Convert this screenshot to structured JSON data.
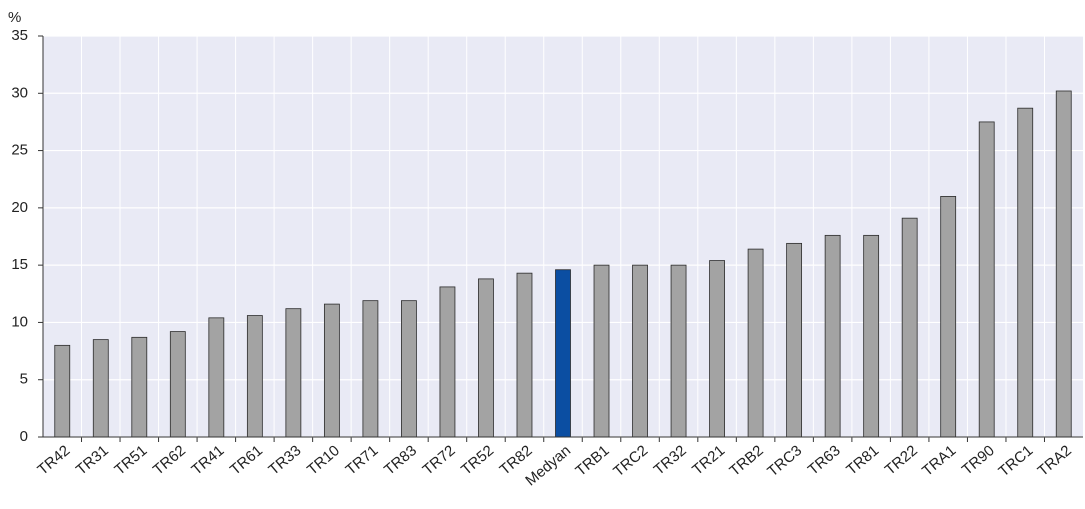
{
  "chart_data": {
    "type": "bar",
    "y_unit_label": "%",
    "categories": [
      "TR42",
      "TR31",
      "TR51",
      "TR62",
      "TR41",
      "TR61",
      "TR33",
      "TR10",
      "TR71",
      "TR83",
      "TR72",
      "TR52",
      "TR82",
      "Medyan",
      "TRB1",
      "TRC2",
      "TR32",
      "TR21",
      "TRB2",
      "TRC3",
      "TR63",
      "TR81",
      "TR22",
      "TRA1",
      "TR90",
      "TRC1",
      "TRA2"
    ],
    "values": [
      8.0,
      8.5,
      8.7,
      9.2,
      10.4,
      10.6,
      11.2,
      11.6,
      11.9,
      11.9,
      13.1,
      13.8,
      14.3,
      14.6,
      15.0,
      15.0,
      15.0,
      15.4,
      16.4,
      16.9,
      17.6,
      17.6,
      19.1,
      21.0,
      27.5,
      28.7,
      30.2
    ],
    "colors": [
      "#a3a3a3",
      "#a3a3a3",
      "#a3a3a3",
      "#a3a3a3",
      "#a3a3a3",
      "#a3a3a3",
      "#a3a3a3",
      "#a3a3a3",
      "#a3a3a3",
      "#a3a3a3",
      "#a3a3a3",
      "#a3a3a3",
      "#a3a3a3",
      "#0b4ea2",
      "#a3a3a3",
      "#a3a3a3",
      "#a3a3a3",
      "#a3a3a3",
      "#a3a3a3",
      "#a3a3a3",
      "#a3a3a3",
      "#a3a3a3",
      "#a3a3a3",
      "#a3a3a3",
      "#a3a3a3",
      "#a3a3a3",
      "#a3a3a3"
    ],
    "ylim": [
      0,
      35
    ],
    "yticks": [
      0,
      5,
      10,
      15,
      20,
      25,
      30,
      35
    ],
    "grid": true
  }
}
